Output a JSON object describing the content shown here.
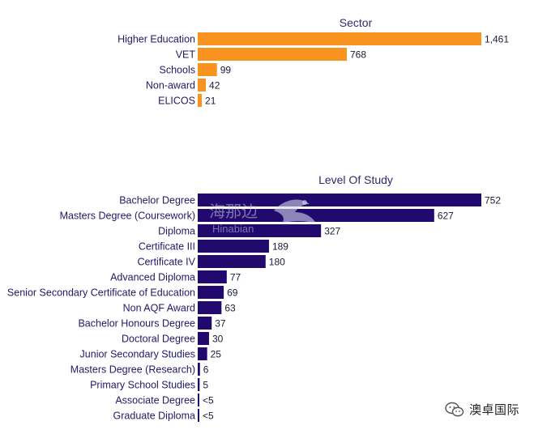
{
  "chart_data": [
    {
      "type": "bar",
      "orientation": "horizontal",
      "title": "Sector",
      "color": "#f7931e",
      "categories": [
        "Higher Education",
        "VET",
        "Schools",
        "Non-award",
        "ELICOS"
      ],
      "values": [
        1461,
        768,
        99,
        42,
        21
      ],
      "value_labels": [
        "1,461",
        "768",
        "99",
        "42",
        "21"
      ],
      "xlim": [
        0,
        1461
      ],
      "grid": false,
      "legend": "none"
    },
    {
      "type": "bar",
      "orientation": "horizontal",
      "title": "Level Of Study",
      "color": "#21096e",
      "categories": [
        "Bachelor Degree",
        "Masters Degree (Coursework)",
        "Diploma",
        "Certificate III",
        "Certificate IV",
        "Advanced Diploma",
        "Senior Secondary Certificate of Education",
        "Non AQF Award",
        "Bachelor Honours Degree",
        "Doctoral Degree",
        "Junior Secondary Studies",
        "Masters Degree (Research)",
        "Primary School Studies",
        "Associate Degree",
        "Graduate Diploma"
      ],
      "values": [
        752,
        627,
        327,
        189,
        180,
        77,
        69,
        63,
        37,
        30,
        25,
        6,
        5,
        4,
        4
      ],
      "value_labels": [
        "752",
        "627",
        "327",
        "189",
        "180",
        "77",
        "69",
        "63",
        "37",
        "30",
        "25",
        "6",
        "5",
        "<5",
        "<5"
      ],
      "xlim": [
        0,
        752
      ],
      "grid": false,
      "legend": "none"
    }
  ],
  "watermark": {
    "cn": "海那边",
    "en": "Hinabian",
    "icon": "bird-logo-icon"
  },
  "source_badge": {
    "text": "澳卓国际",
    "icon": "wechat-icon"
  }
}
